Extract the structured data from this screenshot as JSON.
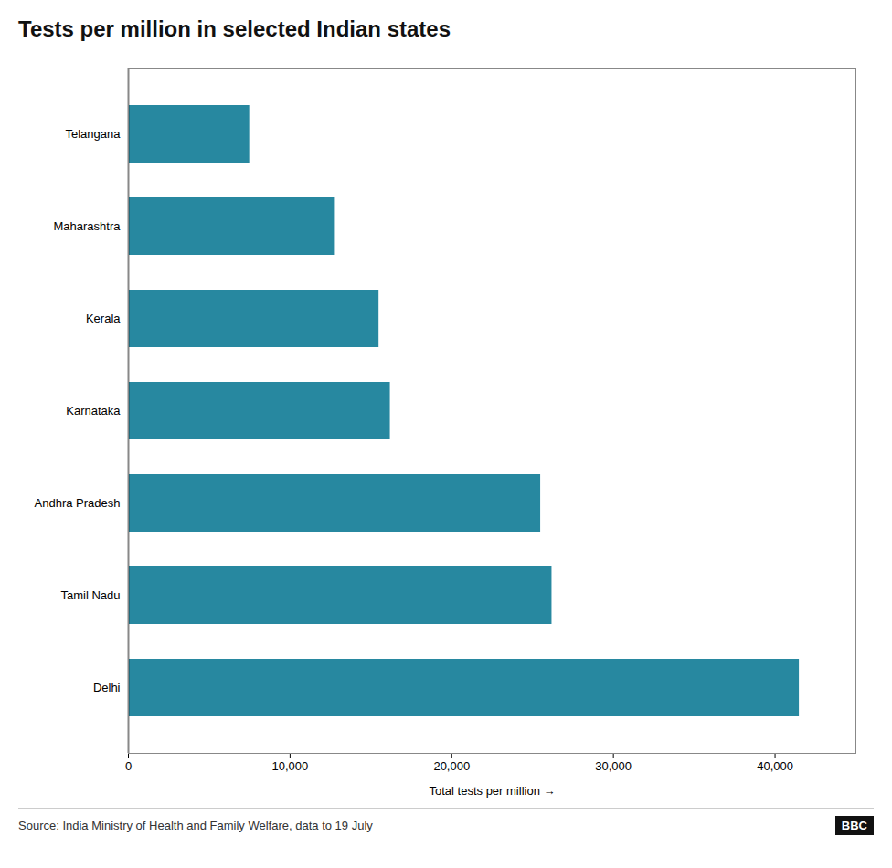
{
  "chart_data": {
    "type": "bar",
    "orientation": "horizontal",
    "title": "Tests per million in selected Indian states",
    "categories": [
      "Telangana",
      "Maharashtra",
      "Kerala",
      "Karnataka",
      "Andhra Pradesh",
      "Tamil Nadu",
      "Delhi"
    ],
    "values": [
      7500,
      12800,
      15500,
      16200,
      25500,
      26200,
      41500
    ],
    "color": "#2788a0",
    "xlabel": "Total tests per million",
    "xlim": [
      0,
      45000
    ],
    "xticks": [
      0,
      {
        "value": 10000,
        "label": "10,000"
      },
      {
        "value": 20000,
        "label": "20,000"
      },
      {
        "value": 30000,
        "label": "30,000"
      },
      {
        "value": 40000,
        "label": "40,000"
      }
    ],
    "grid": false,
    "source": "Source: India Ministry of Health and Family Welfare, data to 19 July",
    "annotations": [
      "BBC"
    ]
  }
}
